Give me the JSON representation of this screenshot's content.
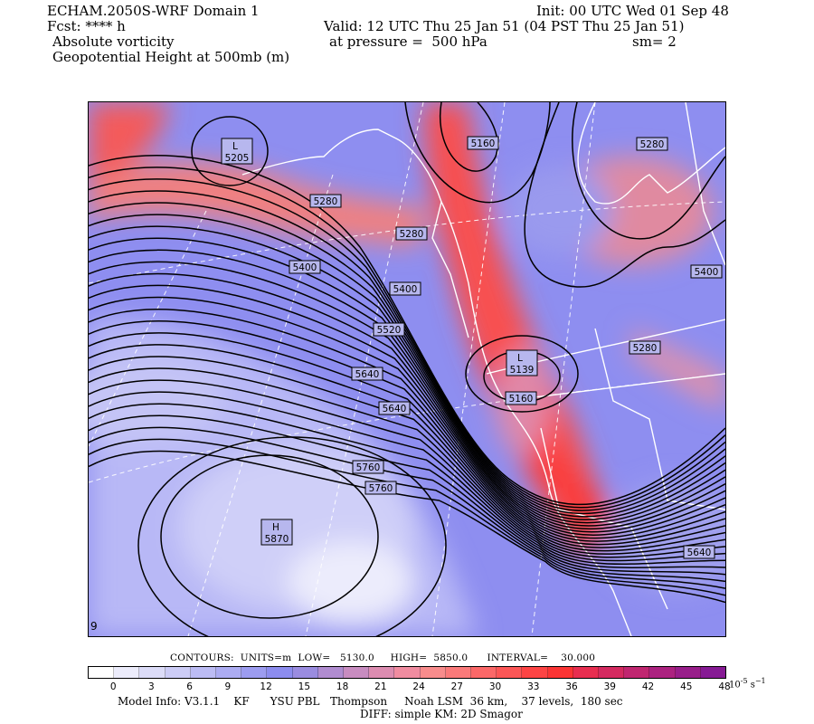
{
  "header": {
    "model_title": "ECHAM.2050S-WRF Domain 1",
    "init_line": "Init: 00 UTC Wed 01 Sep 48",
    "fcst_line": "Fcst: **** h",
    "valid_line": "Valid: 12 UTC Thu 25 Jan 51 (04 PST Thu 25 Jan 51)",
    "field1": "Absolute vorticity",
    "pressure_line": "at pressure =  500 hPa",
    "sm_line": "sm= 2",
    "field2": "Geopotential Height at 500mb (m)"
  },
  "contour_labels": [
    "5160",
    "5280",
    "5280",
    "5280",
    "5400",
    "5400",
    "5520",
    "5640",
    "5640",
    "5760",
    "5760",
    "5640",
    "5160",
    "5280",
    "5400"
  ],
  "extrema": [
    {
      "type": "L",
      "value": "5205"
    },
    {
      "type": "L",
      "value": "5139"
    },
    {
      "type": "H",
      "value": "5870"
    }
  ],
  "contour_info": "CONTOURS:  UNITS=m  LOW=   5130.0     HIGH=  5850.0      INTERVAL=    30.000",
  "colorbar": {
    "colors": [
      "#ffffff",
      "#ececfb",
      "#dcdcf8",
      "#ccccf6",
      "#bcbcf4",
      "#acacf2",
      "#9c9cf0",
      "#8c8cee",
      "#9a8ce0",
      "#b08cd0",
      "#c88cc0",
      "#dc8cb0",
      "#f08ca0",
      "#f88c8c",
      "#fa7a7a",
      "#fb6868",
      "#fc5656",
      "#fd4444",
      "#fb3434",
      "#e82e50",
      "#d42a60",
      "#c02670",
      "#ac2280",
      "#981e8a",
      "#861a94"
    ],
    "ticks": [
      "0",
      "3",
      "6",
      "9",
      "12",
      "15",
      "18",
      "21",
      "24",
      "27",
      "30",
      "33",
      "36",
      "39",
      "42",
      "45",
      "48"
    ],
    "units_label": "10",
    "units_exp": "-5",
    "units_suffix": " s"
  },
  "footer": {
    "model_info": "Model Info: V3.1.1    KF      YSU PBL   Thompson     Noah LSM  36 km,    37 levels,  180 sec",
    "diff_info": "DIFF: simple KM: 2D Smagor"
  }
}
